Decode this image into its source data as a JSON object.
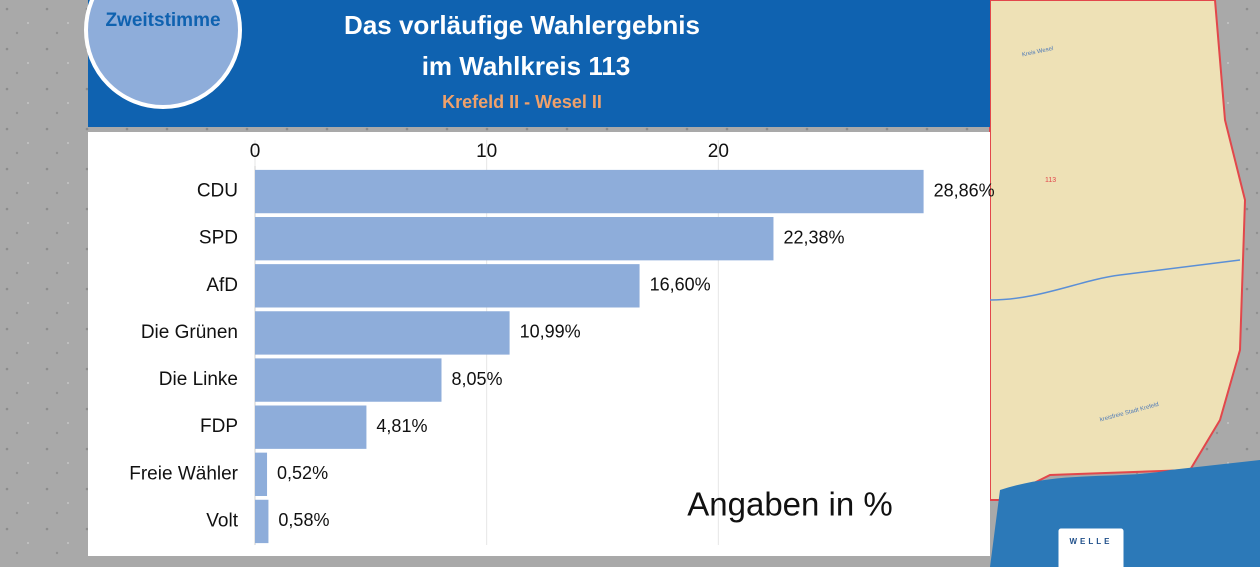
{
  "chart_data": {
    "type": "bar",
    "orientation": "horizontal",
    "badge": "Zweitstimme",
    "title": "Das vorläufige Wahlergebnis",
    "title_line2": "im Wahlkreis 113",
    "subtitle": "Krefeld II - Wesel II",
    "annotation": "Angaben in %",
    "categories": [
      "CDU",
      "SPD",
      "AfD",
      "Die Grünen",
      "Die Linke",
      "FDP",
      "Freie Wähler",
      "Volt"
    ],
    "values": [
      28.86,
      22.38,
      16.6,
      10.99,
      8.05,
      4.81,
      0.52,
      0.58
    ],
    "value_labels": [
      "28,86%",
      "22,38%",
      "16,60%",
      "10,99%",
      "8,05%",
      "4,81%",
      "0,52%",
      "0,58%"
    ],
    "color": "#8eadda",
    "xlim": [
      0,
      30
    ],
    "xticks": [
      0,
      10,
      20
    ],
    "grid": true
  },
  "map": {
    "labels": [
      "Kreis Wesel",
      "113",
      "kreisfreie Stadt Krefeld"
    ]
  },
  "logo": {
    "text": "WELLE"
  }
}
